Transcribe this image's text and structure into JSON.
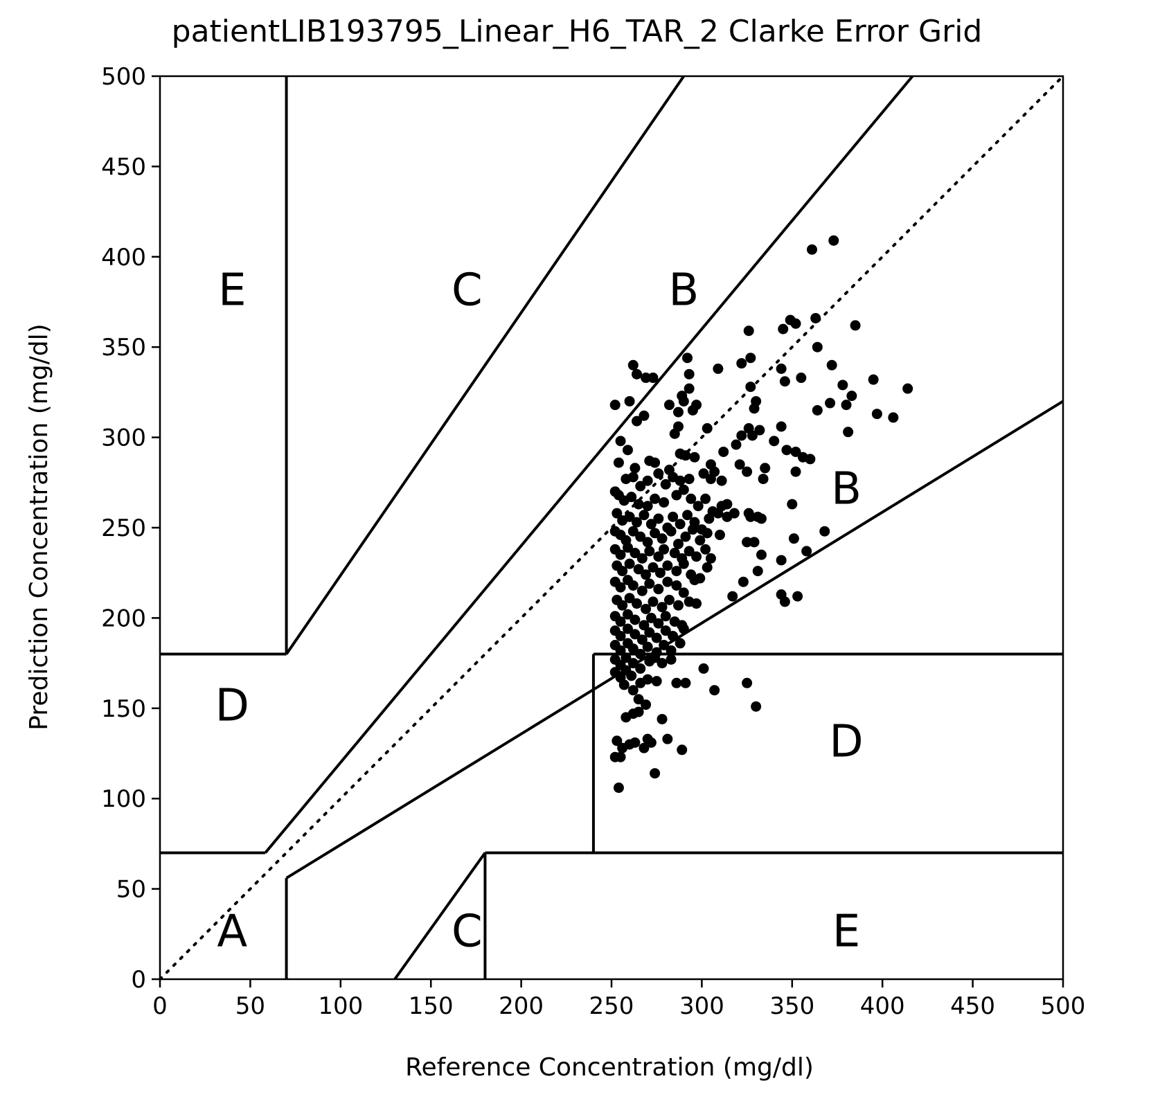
{
  "chart_data": {
    "type": "scatter",
    "title": "patientLIB193795_Linear_H6_TAR_2 Clarke Error Grid",
    "xlabel": "Reference Concentration (mg/dl)",
    "ylabel": "Prediction Concentration (mg/dl)",
    "xlim": [
      0,
      500
    ],
    "ylim": [
      0,
      500
    ],
    "xticks": [
      0,
      50,
      100,
      150,
      200,
      250,
      300,
      350,
      400,
      450,
      500
    ],
    "yticks": [
      0,
      50,
      100,
      150,
      200,
      250,
      300,
      350,
      400,
      450,
      500
    ],
    "grid": false,
    "point_color": "#000000",
    "zone_labels": [
      {
        "text": "E",
        "x": 40,
        "y": 380
      },
      {
        "text": "C",
        "x": 170,
        "y": 380
      },
      {
        "text": "B",
        "x": 290,
        "y": 380
      },
      {
        "text": "D",
        "x": 40,
        "y": 150
      },
      {
        "text": "B",
        "x": 380,
        "y": 270
      },
      {
        "text": "D",
        "x": 380,
        "y": 130
      },
      {
        "text": "A",
        "x": 40,
        "y": 25
      },
      {
        "text": "C",
        "x": 170,
        "y": 25
      },
      {
        "text": "E",
        "x": 380,
        "y": 25
      }
    ],
    "zone_lines": [
      [
        [
          0,
          0
        ],
        [
          500,
          500
        ]
      ],
      [
        [
          0,
          70
        ],
        [
          58.33,
          70
        ]
      ],
      [
        [
          58.33,
          70
        ],
        [
          70,
          84
        ]
      ],
      [
        [
          70,
          84
        ],
        [
          416.67,
          500
        ]
      ],
      [
        [
          70,
          56
        ],
        [
          500,
          320
        ]
      ],
      [
        [
          70,
          56
        ],
        [
          70,
          0
        ]
      ],
      [
        [
          70,
          180
        ],
        [
          70,
          500
        ]
      ],
      [
        [
          70,
          180
        ],
        [
          290,
          500
        ]
      ],
      [
        [
          0,
          180
        ],
        [
          70,
          180
        ]
      ],
      [
        [
          130,
          0
        ],
        [
          180,
          70
        ]
      ],
      [
        [
          180,
          70
        ],
        [
          180,
          0
        ]
      ],
      [
        [
          180,
          70
        ],
        [
          500,
          70
        ]
      ],
      [
        [
          240,
          70
        ],
        [
          240,
          180
        ]
      ],
      [
        [
          240,
          180
        ],
        [
          500,
          180
        ]
      ]
    ],
    "points": [
      [
        361,
        404
      ],
      [
        373,
        409
      ],
      [
        326,
        359
      ],
      [
        345,
        360
      ],
      [
        349,
        365
      ],
      [
        352,
        363
      ],
      [
        363,
        366
      ],
      [
        385,
        362
      ],
      [
        364,
        350
      ],
      [
        327,
        344
      ],
      [
        292,
        344
      ],
      [
        262,
        340
      ],
      [
        344,
        338
      ],
      [
        372,
        340
      ],
      [
        309,
        338
      ],
      [
        322,
        341
      ],
      [
        264,
        335
      ],
      [
        269,
        333
      ],
      [
        273,
        333
      ],
      [
        293,
        335
      ],
      [
        346,
        331
      ],
      [
        355,
        333
      ],
      [
        395,
        332
      ],
      [
        252,
        318
      ],
      [
        260,
        320
      ],
      [
        290,
        320
      ],
      [
        282,
        318
      ],
      [
        293,
        327
      ],
      [
        327,
        328
      ],
      [
        330,
        320
      ],
      [
        378,
        329
      ],
      [
        383,
        323
      ],
      [
        414,
        327
      ],
      [
        371,
        319
      ],
      [
        380,
        318
      ],
      [
        264,
        309
      ],
      [
        268,
        312
      ],
      [
        287,
        314
      ],
      [
        295,
        315
      ],
      [
        289,
        323
      ],
      [
        297,
        318
      ],
      [
        329,
        316
      ],
      [
        364,
        315
      ],
      [
        397,
        313
      ],
      [
        406,
        311
      ],
      [
        285,
        302
      ],
      [
        332,
        304
      ],
      [
        344,
        306
      ],
      [
        381,
        303
      ],
      [
        255,
        298
      ],
      [
        259,
        293
      ],
      [
        287,
        306
      ],
      [
        288,
        291
      ],
      [
        303,
        305
      ],
      [
        326,
        305
      ],
      [
        340,
        298
      ],
      [
        347,
        293
      ],
      [
        352,
        292
      ],
      [
        356,
        289
      ],
      [
        360,
        288
      ],
      [
        254,
        286
      ],
      [
        263,
        283
      ],
      [
        271,
        287
      ],
      [
        274,
        286
      ],
      [
        282,
        282
      ],
      [
        291,
        290
      ],
      [
        296,
        289
      ],
      [
        305,
        285
      ],
      [
        312,
        292
      ],
      [
        319,
        296
      ],
      [
        322,
        301
      ],
      [
        328,
        301
      ],
      [
        321,
        285
      ],
      [
        325,
        281
      ],
      [
        335,
        283
      ],
      [
        352,
        281
      ],
      [
        258,
        277
      ],
      [
        262,
        278
      ],
      [
        266,
        273
      ],
      [
        270,
        276
      ],
      [
        276,
        280
      ],
      [
        280,
        274
      ],
      [
        284,
        278
      ],
      [
        288,
        276
      ],
      [
        293,
        277
      ],
      [
        301,
        280
      ],
      [
        305,
        277
      ],
      [
        307,
        281
      ],
      [
        311,
        276
      ],
      [
        334,
        277
      ],
      [
        314,
        263
      ],
      [
        252,
        270
      ],
      [
        254,
        268
      ],
      [
        257,
        265
      ],
      [
        261,
        267
      ],
      [
        265,
        263
      ],
      [
        270,
        262
      ],
      [
        274,
        266
      ],
      [
        279,
        264
      ],
      [
        286,
        268
      ],
      [
        290,
        271
      ],
      [
        294,
        266
      ],
      [
        298,
        262
      ],
      [
        302,
        266
      ],
      [
        306,
        259
      ],
      [
        311,
        262
      ],
      [
        318,
        258
      ],
      [
        326,
        258
      ],
      [
        331,
        256
      ],
      [
        350,
        263
      ],
      [
        253,
        258
      ],
      [
        256,
        254
      ],
      [
        260,
        256
      ],
      [
        264,
        253
      ],
      [
        268,
        257
      ],
      [
        272,
        252
      ],
      [
        276,
        255
      ],
      [
        281,
        250
      ],
      [
        284,
        256
      ],
      [
        288,
        252
      ],
      [
        292,
        257
      ],
      [
        296,
        253
      ],
      [
        300,
        249
      ],
      [
        304,
        255
      ],
      [
        309,
        258
      ],
      [
        314,
        256
      ],
      [
        327,
        256
      ],
      [
        333,
        255
      ],
      [
        252,
        248
      ],
      [
        255,
        246
      ],
      [
        258,
        243
      ],
      [
        262,
        248
      ],
      [
        266,
        245
      ],
      [
        270,
        242
      ],
      [
        274,
        247
      ],
      [
        278,
        244
      ],
      [
        283,
        248
      ],
      [
        287,
        241
      ],
      [
        291,
        245
      ],
      [
        295,
        249
      ],
      [
        299,
        243
      ],
      [
        303,
        247
      ],
      [
        310,
        246
      ],
      [
        325,
        242
      ],
      [
        329,
        242
      ],
      [
        351,
        244
      ],
      [
        368,
        248
      ],
      [
        252,
        238
      ],
      [
        255,
        235
      ],
      [
        259,
        239
      ],
      [
        263,
        236
      ],
      [
        267,
        233
      ],
      [
        271,
        237
      ],
      [
        276,
        234
      ],
      [
        279,
        238
      ],
      [
        285,
        236
      ],
      [
        289,
        233
      ],
      [
        293,
        237
      ],
      [
        297,
        234
      ],
      [
        302,
        238
      ],
      [
        305,
        233
      ],
      [
        333,
        235
      ],
      [
        358,
        237
      ],
      [
        344,
        232
      ],
      [
        253,
        229
      ],
      [
        256,
        226
      ],
      [
        260,
        230
      ],
      [
        265,
        227
      ],
      [
        269,
        224
      ],
      [
        273,
        228
      ],
      [
        277,
        225
      ],
      [
        281,
        229
      ],
      [
        286,
        226
      ],
      [
        290,
        230
      ],
      [
        294,
        224
      ],
      [
        299,
        222
      ],
      [
        303,
        228
      ],
      [
        331,
        226
      ],
      [
        252,
        220
      ],
      [
        255,
        217
      ],
      [
        259,
        221
      ],
      [
        262,
        218
      ],
      [
        267,
        215
      ],
      [
        271,
        219
      ],
      [
        276,
        216
      ],
      [
        281,
        220
      ],
      [
        286,
        218
      ],
      [
        290,
        214
      ],
      [
        296,
        221
      ],
      [
        323,
        220
      ],
      [
        317,
        212
      ],
      [
        344,
        213
      ],
      [
        346,
        209
      ],
      [
        353,
        212
      ],
      [
        253,
        210
      ],
      [
        256,
        207
      ],
      [
        260,
        211
      ],
      [
        264,
        208
      ],
      [
        269,
        205
      ],
      [
        273,
        209
      ],
      [
        278,
        206
      ],
      [
        282,
        210
      ],
      [
        287,
        207
      ],
      [
        293,
        209
      ],
      [
        297,
        208
      ],
      [
        252,
        201
      ],
      [
        255,
        198
      ],
      [
        259,
        202
      ],
      [
        263,
        199
      ],
      [
        268,
        196
      ],
      [
        272,
        200
      ],
      [
        276,
        197
      ],
      [
        280,
        201
      ],
      [
        285,
        198
      ],
      [
        289,
        196
      ],
      [
        252,
        193
      ],
      [
        255,
        190
      ],
      [
        259,
        194
      ],
      [
        263,
        191
      ],
      [
        267,
        188
      ],
      [
        271,
        192
      ],
      [
        275,
        189
      ],
      [
        280,
        193
      ],
      [
        284,
        190
      ],
      [
        290,
        194
      ],
      [
        252,
        185
      ],
      [
        255,
        182
      ],
      [
        259,
        186
      ],
      [
        262,
        183
      ],
      [
        266,
        180
      ],
      [
        270,
        184
      ],
      [
        275,
        181
      ],
      [
        279,
        185
      ],
      [
        283,
        182
      ],
      [
        288,
        186
      ],
      [
        252,
        177
      ],
      [
        255,
        174
      ],
      [
        258,
        178
      ],
      [
        262,
        175
      ],
      [
        266,
        172
      ],
      [
        271,
        176
      ],
      [
        274,
        178
      ],
      [
        278,
        175
      ],
      [
        283,
        177
      ],
      [
        252,
        170
      ],
      [
        255,
        167
      ],
      [
        258,
        171
      ],
      [
        261,
        168
      ],
      [
        266,
        164
      ],
      [
        270,
        166
      ],
      [
        275,
        165
      ],
      [
        286,
        164
      ],
      [
        291,
        164
      ],
      [
        301,
        172
      ],
      [
        307,
        160
      ],
      [
        325,
        164
      ],
      [
        257,
        163
      ],
      [
        262,
        160
      ],
      [
        265,
        155
      ],
      [
        269,
        152
      ],
      [
        330,
        151
      ],
      [
        258,
        145
      ],
      [
        262,
        147
      ],
      [
        265,
        148
      ],
      [
        278,
        144
      ],
      [
        253,
        132
      ],
      [
        256,
        128
      ],
      [
        260,
        130
      ],
      [
        263,
        131
      ],
      [
        268,
        128
      ],
      [
        270,
        133
      ],
      [
        272,
        131
      ],
      [
        281,
        133
      ],
      [
        289,
        127
      ],
      [
        252,
        123
      ],
      [
        255,
        123
      ],
      [
        274,
        114
      ],
      [
        254,
        106
      ]
    ]
  }
}
